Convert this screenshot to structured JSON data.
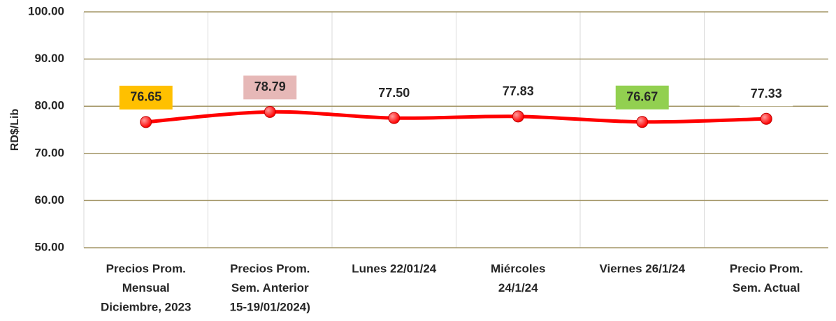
{
  "chart_data": {
    "type": "line",
    "y_label": "RD$/Lib",
    "categories": [
      [
        "Precios Prom.",
        "Mensual",
        "Diciembre, 2023"
      ],
      [
        "Precios Prom.",
        "Sem. Anterior",
        "15-19/01/2024)"
      ],
      [
        "Lunes  22/01/24"
      ],
      [
        "Miércoles",
        "24/1/24"
      ],
      [
        "Viernes 26/1/24"
      ],
      [
        "Precio Prom.",
        "Sem. Actual"
      ]
    ],
    "values": [
      76.65,
      78.79,
      77.5,
      77.83,
      76.67,
      77.33
    ],
    "value_labels": [
      "76.65",
      "78.79",
      "77.50",
      "77.83",
      "76.67",
      "77.33"
    ],
    "label_colors": [
      "#ffc000",
      "#e6b8b7",
      "#ffffff",
      "#ffffff",
      "#92d050",
      "#ffffff"
    ],
    "color": "#ff0000",
    "smooth": true,
    "ylim": [
      50,
      100
    ],
    "yticks": [
      {
        "value": 50,
        "label": "50.00"
      },
      {
        "value": 60,
        "label": "60.00"
      },
      {
        "value": 70,
        "label": "70.00"
      },
      {
        "value": 80,
        "label": "80.00"
      },
      {
        "value": 90,
        "label": "90.00"
      },
      {
        "value": 100,
        "label": "100.00"
      }
    ],
    "grid": true
  }
}
